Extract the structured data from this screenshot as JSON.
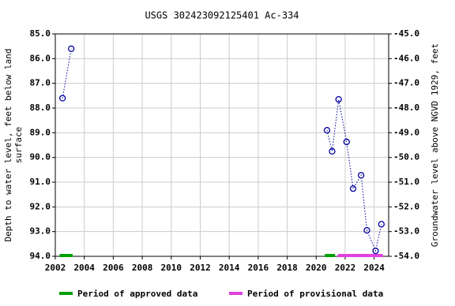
{
  "chart_data": {
    "type": "line",
    "title": "USGS 302423092125401 Ac-334",
    "ylabel": [
      "Depth to water level, feet below land",
      "surface"
    ],
    "y2label": "Groundwater level above NGVD 1929, feet",
    "xlim": [
      2002,
      2025
    ],
    "xticks": [
      2002,
      2004,
      2006,
      2008,
      2010,
      2012,
      2014,
      2016,
      2018,
      2020,
      2022,
      2024
    ],
    "ylim": [
      94,
      85
    ],
    "yticks": [
      {
        "value": 85,
        "label": "85.0"
      },
      {
        "value": 86,
        "label": "86.0"
      },
      {
        "value": 87,
        "label": "87.0"
      },
      {
        "value": 88,
        "label": "88.0"
      },
      {
        "value": 89,
        "label": "89.0"
      },
      {
        "value": 90,
        "label": "90.0"
      },
      {
        "value": 91,
        "label": "91.0"
      },
      {
        "value": 92,
        "label": "92.0"
      },
      {
        "value": 93,
        "label": "93.0"
      },
      {
        "value": 94,
        "label": "94.0"
      }
    ],
    "y2lim": [
      -54,
      -45
    ],
    "y2ticks": [
      {
        "value": -45,
        "label": "-45.0"
      },
      {
        "value": -46,
        "label": "-46.0"
      },
      {
        "value": -47,
        "label": "-47.0"
      },
      {
        "value": -48,
        "label": "-48.0"
      },
      {
        "value": -49,
        "label": "-49.0"
      },
      {
        "value": -50,
        "label": "-50.0"
      },
      {
        "value": -51,
        "label": "-51.0"
      },
      {
        "value": -52,
        "label": "-52.0"
      },
      {
        "value": -53,
        "label": "-53.0"
      },
      {
        "value": -54,
        "label": "-54.0"
      }
    ],
    "grid": true,
    "series": [
      {
        "color": "#0000a0",
        "x": [
          2002.5,
          2003.1,
          null,
          2020.75,
          2021.1,
          2021.55,
          2022.1,
          2022.55,
          2023.1,
          2023.5,
          2024.1,
          2024.5
        ],
        "values": [
          87.6,
          85.6,
          null,
          88.9,
          89.75,
          87.65,
          89.37,
          91.26,
          90.72,
          92.95,
          93.78,
          92.7
        ]
      }
    ],
    "periods": [
      {
        "name": "Period of approved data",
        "color": "#00a000",
        "ranges": [
          [
            2002.3,
            2003.2
          ],
          [
            2020.6,
            2021.3
          ]
        ]
      },
      {
        "name": "Period of provisional data",
        "color": "#e040e0",
        "ranges": [
          [
            2021.5,
            2024.6
          ]
        ]
      }
    ]
  }
}
